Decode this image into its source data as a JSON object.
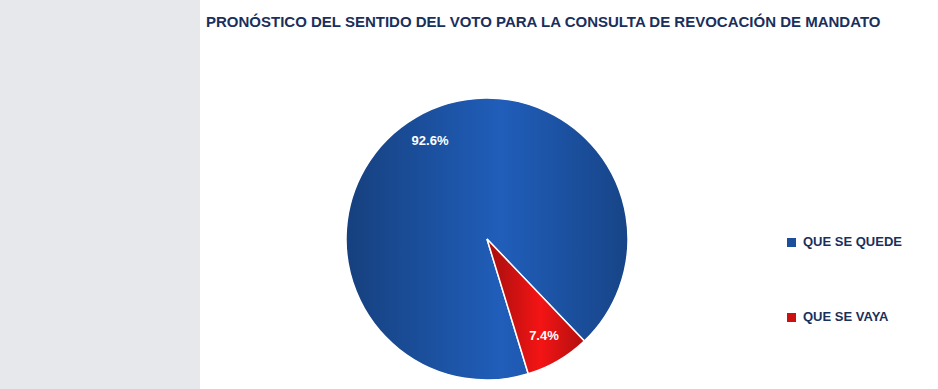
{
  "chart_data": {
    "type": "pie",
    "title": "PRONÓSTICO DEL SENTIDO DEL VOTO PARA LA CONSULTA DE REVOCACIÓN DE MANDATO",
    "categories": [
      "QUE SE QUEDE",
      "QUE SE VAYA"
    ],
    "values": [
      92.6,
      7.4
    ],
    "value_labels": [
      "92.6%",
      "7.4%"
    ],
    "colors": [
      "#1b4f9c",
      "#cc1111"
    ],
    "data_labels": true,
    "legend": "right"
  }
}
